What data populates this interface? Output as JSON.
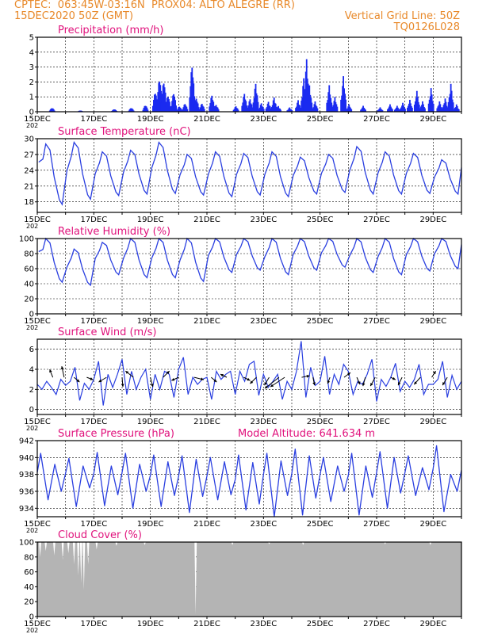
{
  "header": {
    "line1": "CPTEC:  063:45W-03:16N  PROX04: ALTO ALEGRE (RR)",
    "line2_left": "15DEC2020 50Z (GMT)",
    "line2_right": "Vertical Grid Line: 50Z",
    "line3_right": "TQ0126L028"
  },
  "x_axis": {
    "labels": [
      "15DEC",
      "17DEC",
      "19DEC",
      "21DEC",
      "23DEC",
      "25DEC",
      "27DEC",
      "29DEC"
    ],
    "sub_label": "202"
  },
  "colors": {
    "line": "#2a3fe0",
    "bar": "#1a2af0",
    "cloud": "#b4b4b4",
    "title": "#e0127c",
    "header": "#e8892a"
  },
  "chart_data": [
    {
      "id": "precip",
      "type": "bar",
      "title": "Precipitation (mm/h)",
      "ylim": [
        0,
        5
      ],
      "yticks": [
        0,
        1,
        2,
        3,
        4,
        5
      ],
      "grid": "dashed-horizontal",
      "events": [
        {
          "day": 0.5,
          "v": 0.3
        },
        {
          "day": 1.5,
          "v": 0.1
        },
        {
          "day": 2.7,
          "v": 0.2
        },
        {
          "day": 3.3,
          "v": 0.3
        },
        {
          "day": 3.8,
          "v": 0.5
        },
        {
          "day": 4.15,
          "v": 1.5
        },
        {
          "day": 4.3,
          "v": 2.5
        },
        {
          "day": 4.45,
          "v": 2.3
        },
        {
          "day": 4.6,
          "v": 1.2
        },
        {
          "day": 4.8,
          "v": 1.4
        },
        {
          "day": 5.0,
          "v": 0.4
        },
        {
          "day": 5.2,
          "v": 0.6
        },
        {
          "day": 5.45,
          "v": 3.4
        },
        {
          "day": 5.6,
          "v": 1.0
        },
        {
          "day": 5.8,
          "v": 0.6
        },
        {
          "day": 6.15,
          "v": 1.2
        },
        {
          "day": 6.3,
          "v": 0.5
        },
        {
          "day": 7.0,
          "v": 0.4
        },
        {
          "day": 7.3,
          "v": 1.3
        },
        {
          "day": 7.5,
          "v": 0.9
        },
        {
          "day": 7.7,
          "v": 2.0
        },
        {
          "day": 7.9,
          "v": 0.6
        },
        {
          "day": 8.15,
          "v": 0.7
        },
        {
          "day": 8.35,
          "v": 1.0
        },
        {
          "day": 8.5,
          "v": 0.4
        },
        {
          "day": 8.9,
          "v": 0.3
        },
        {
          "day": 9.2,
          "v": 0.8
        },
        {
          "day": 9.4,
          "v": 2.3
        },
        {
          "day": 9.5,
          "v": 3.6
        },
        {
          "day": 9.6,
          "v": 1.8
        },
        {
          "day": 9.8,
          "v": 0.7
        },
        {
          "day": 10.3,
          "v": 1.8
        },
        {
          "day": 10.5,
          "v": 1.0
        },
        {
          "day": 10.8,
          "v": 2.4
        },
        {
          "day": 11.0,
          "v": 0.5
        },
        {
          "day": 11.5,
          "v": 0.4
        },
        {
          "day": 12.1,
          "v": 0.3
        },
        {
          "day": 12.45,
          "v": 0.5
        },
        {
          "day": 12.7,
          "v": 0.4
        },
        {
          "day": 12.9,
          "v": 0.6
        },
        {
          "day": 13.15,
          "v": 0.8
        },
        {
          "day": 13.4,
          "v": 1.4
        },
        {
          "day": 13.6,
          "v": 0.7
        },
        {
          "day": 13.9,
          "v": 1.6
        },
        {
          "day": 14.2,
          "v": 0.7
        },
        {
          "day": 14.4,
          "v": 0.9
        },
        {
          "day": 14.6,
          "v": 1.9
        },
        {
          "day": 14.8,
          "v": 0.5
        }
      ]
    },
    {
      "id": "temp",
      "type": "line",
      "title": "Surface Temperature (nC)",
      "ylim": [
        16,
        30
      ],
      "yticks": [
        18,
        21,
        24,
        27,
        30
      ],
      "daily_min": [
        17.5,
        18.5,
        19.2,
        19.5,
        19.6,
        19.3,
        19.0,
        19.3,
        19.0,
        19.5,
        19.8,
        19.5,
        19.5,
        19.6,
        19.5
      ],
      "daily_max": [
        29.0,
        29.3,
        27.5,
        27.8,
        29.3,
        27.0,
        27.5,
        27.2,
        27.5,
        26.5,
        27.0,
        28.5,
        27.5,
        27.2,
        26.0
      ],
      "end_value": 24.5
    },
    {
      "id": "rh",
      "type": "line",
      "title": "Relative Humidity (%)",
      "ylim": [
        0,
        100
      ],
      "yticks": [
        0,
        20,
        40,
        60,
        80,
        100
      ],
      "daily_min": [
        42,
        38,
        52,
        48,
        48,
        43,
        55,
        58,
        52,
        58,
        62,
        55,
        52,
        57,
        60
      ],
      "daily_max": [
        100,
        86,
        95,
        100,
        100,
        100,
        100,
        100,
        100,
        100,
        100,
        100,
        100,
        100,
        100
      ],
      "end_value": 92
    },
    {
      "id": "wind",
      "type": "line",
      "title": "Surface Wind (m/s)",
      "ylim": [
        -0.5,
        7
      ],
      "yticks": [
        0,
        2,
        4,
        6
      ],
      "values": [
        2.5,
        2.0,
        2.8,
        2.2,
        1.5,
        3.0,
        2.4,
        2.8,
        4.2,
        0.9,
        2.6,
        2.0,
        3.0,
        4.8,
        0.4,
        3.5,
        2.2,
        3.5,
        5.0,
        1.5,
        3.8,
        2.0,
        3.2,
        4.0,
        1.0,
        3.5,
        2.0,
        3.8,
        3.5,
        1.2,
        4.0,
        5.2,
        1.5,
        3.2,
        2.5,
        3.0,
        3.2,
        1.0,
        3.8,
        3.0,
        3.5,
        3.8,
        1.5,
        3.8,
        2.8,
        4.5,
        4.8,
        1.4,
        3.5,
        2.2,
        2.8,
        3.5,
        1.0,
        2.8,
        2.0,
        3.8,
        6.8,
        1.2,
        4.2,
        2.4,
        2.8,
        5.3,
        1.5,
        3.5,
        2.5,
        4.5,
        3.8,
        1.5,
        2.8,
        2.5,
        3.5,
        5.0,
        0.8,
        3.0,
        2.3,
        3.2,
        4.6,
        1.8,
        2.8,
        2.2,
        3.0,
        4.5,
        1.5,
        2.5,
        2.5,
        3.0,
        4.8,
        1.2,
        3.4,
        2.0,
        2.8
      ],
      "arrows": [
        {
          "day": 0.55,
          "dx": -4,
          "dy": -10
        },
        {
          "day": 0.95,
          "dx": -3,
          "dy": -14
        },
        {
          "day": 1.3,
          "dx": 7,
          "dy": 6
        },
        {
          "day": 1.75,
          "dx": 8,
          "dy": 3
        },
        {
          "day": 2.45,
          "dx": -10,
          "dy": 6
        },
        {
          "day": 3.0,
          "dx": 1,
          "dy": 12
        },
        {
          "day": 3.4,
          "dx": -10,
          "dy": -8
        },
        {
          "day": 4.0,
          "dx": 3,
          "dy": 12
        },
        {
          "day": 4.45,
          "dx": 8,
          "dy": -8
        },
        {
          "day": 5.0,
          "dx": -9,
          "dy": 4
        },
        {
          "day": 5.55,
          "dx": 12,
          "dy": 3
        },
        {
          "day": 6.15,
          "dx": 7,
          "dy": 6
        },
        {
          "day": 6.7,
          "dx": -8,
          "dy": -4
        },
        {
          "day": 7.3,
          "dx": 8,
          "dy": 4
        },
        {
          "day": 7.75,
          "dx": -8,
          "dy": 8
        },
        {
          "day": 8.2,
          "dx": -6,
          "dy": 10
        },
        {
          "day": 8.55,
          "dx": -18,
          "dy": 14
        },
        {
          "day": 8.75,
          "dx": -18,
          "dy": 12
        },
        {
          "day": 9.35,
          "dx": 10,
          "dy": -2
        },
        {
          "day": 9.75,
          "dx": 2,
          "dy": 10
        },
        {
          "day": 10.35,
          "dx": -3,
          "dy": 8
        },
        {
          "day": 10.85,
          "dx": 8,
          "dy": -6
        },
        {
          "day": 11.3,
          "dx": 4,
          "dy": 9
        },
        {
          "day": 11.6,
          "dx": -3,
          "dy": 11
        },
        {
          "day": 11.95,
          "dx": -6,
          "dy": 11
        },
        {
          "day": 12.5,
          "dx": 6,
          "dy": 3
        },
        {
          "day": 12.9,
          "dx": -5,
          "dy": 10
        },
        {
          "day": 13.55,
          "dx": -8,
          "dy": 9
        },
        {
          "day": 13.95,
          "dx": 5,
          "dy": -8
        },
        {
          "day": 14.5,
          "dx": -6,
          "dy": 10
        }
      ]
    },
    {
      "id": "press",
      "type": "line",
      "title": "Surface Pressure (hPa)",
      "annotation": "Model Altitude: 641.634 m",
      "ylim": [
        933,
        942
      ],
      "yticks": [
        934,
        936,
        938,
        940,
        942
      ],
      "cycles": [
        {
          "max": 940.5,
          "min": 935.0,
          "max2": 939.2,
          "min2": 936.0
        },
        {
          "max": 939.9,
          "min": 934.2,
          "max2": 939.0,
          "min2": 936.4
        },
        {
          "max": 940.6,
          "min": 934.3,
          "max2": 939.0,
          "min2": 935.6
        },
        {
          "max": 940.5,
          "min": 934.0,
          "max2": 939.2,
          "min2": 936.0
        },
        {
          "max": 940.3,
          "min": 934.2,
          "max2": 939.5,
          "min2": 935.5
        },
        {
          "max": 940.2,
          "min": 933.5,
          "max2": 939.8,
          "min2": 935.4
        },
        {
          "max": 940.0,
          "min": 935.0,
          "max2": 939.5,
          "min2": 935.6
        },
        {
          "max": 940.3,
          "min": 933.8,
          "max2": 939.4,
          "min2": 934.5
        },
        {
          "max": 940.5,
          "min": 933.0,
          "max2": 939.6,
          "min2": 935.5
        },
        {
          "max": 941.0,
          "min": 933.2,
          "max2": 940.2,
          "min2": 935.2
        },
        {
          "max": 940.0,
          "min": 934.8,
          "max2": 939.0,
          "min2": 936.0
        },
        {
          "max": 940.5,
          "min": 933.2,
          "max2": 939.0,
          "min2": 935.3
        },
        {
          "max": 940.7,
          "min": 934.0,
          "max2": 940.0,
          "min2": 935.8
        },
        {
          "max": 940.2,
          "min": 935.5,
          "max2": 938.8,
          "min2": 936.2
        },
        {
          "max": 941.4,
          "min": 933.6,
          "max2": 938.0,
          "min2": 936.0
        }
      ]
    },
    {
      "id": "cloud",
      "type": "area",
      "title": "Cloud Cover (%)",
      "ylim": [
        0,
        100
      ],
      "yticks": [
        0,
        20,
        40,
        60,
        80,
        100
      ],
      "dips": [
        {
          "day": 0.1,
          "v": 80
        },
        {
          "day": 0.3,
          "v": 88
        },
        {
          "day": 0.6,
          "v": 82
        },
        {
          "day": 0.9,
          "v": 76
        },
        {
          "day": 1.1,
          "v": 85
        },
        {
          "day": 1.3,
          "v": 70
        },
        {
          "day": 1.45,
          "v": 55
        },
        {
          "day": 1.55,
          "v": 45
        },
        {
          "day": 1.65,
          "v": 36
        },
        {
          "day": 1.8,
          "v": 70
        },
        {
          "day": 2.1,
          "v": 90
        },
        {
          "day": 2.8,
          "v": 95
        },
        {
          "day": 3.8,
          "v": 96
        },
        {
          "day": 5.6,
          "v": 3
        },
        {
          "day": 6.9,
          "v": 96
        },
        {
          "day": 8.2,
          "v": 97
        },
        {
          "day": 9.4,
          "v": 96
        },
        {
          "day": 12.3,
          "v": 97
        },
        {
          "day": 13.9,
          "v": 96
        }
      ]
    }
  ]
}
